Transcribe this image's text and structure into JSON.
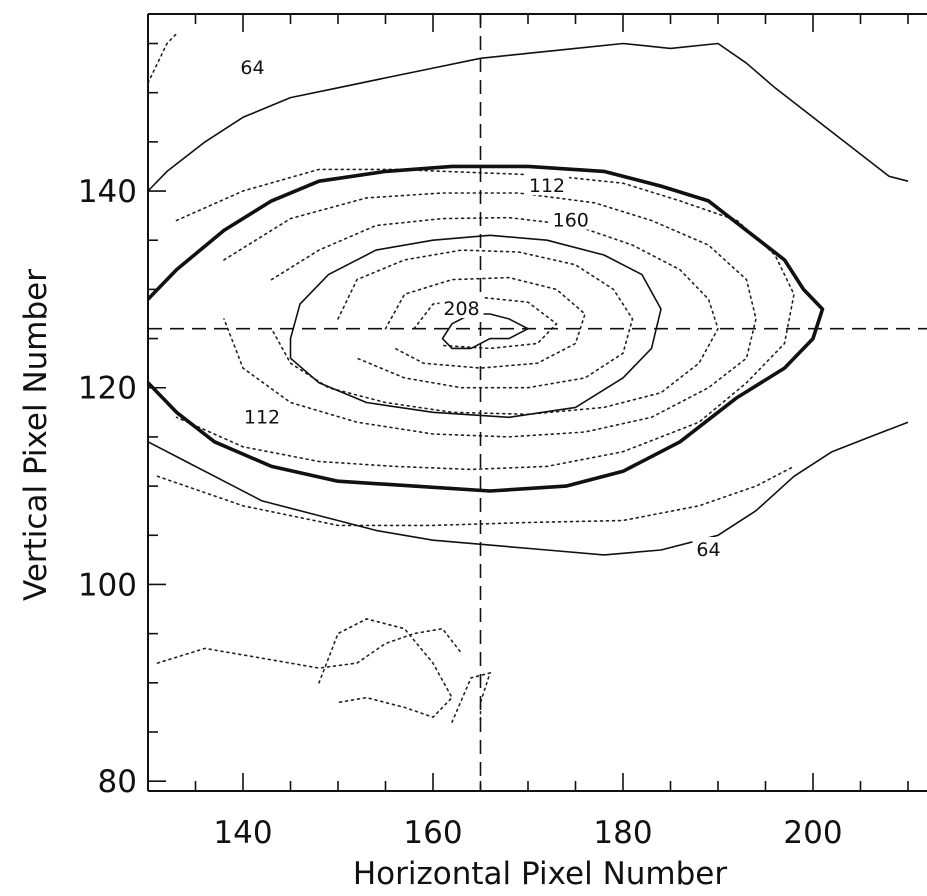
{
  "chart_data": {
    "type": "contour",
    "title": "",
    "xlabel": "Horizontal Pixel Number",
    "ylabel": "Vertical Pixel Number",
    "xlim": [
      130,
      212
    ],
    "ylim": [
      79,
      158
    ],
    "x_ticks": [
      140,
      160,
      180,
      200
    ],
    "x_tick_labels": [
      "140",
      "160",
      "180",
      "200"
    ],
    "y_ticks": [
      80,
      100,
      120,
      140
    ],
    "y_tick_labels": [
      "80",
      "100",
      "120",
      "140"
    ],
    "reference_lines": {
      "vertical_x": 165,
      "horizontal_y": 126
    },
    "peak": {
      "x": 166,
      "y": 126
    },
    "contours": [
      {
        "level": 64,
        "label": "64",
        "style": "solid",
        "points": [
          [
            130,
            140
          ],
          [
            132,
            142
          ],
          [
            136,
            145
          ],
          [
            140,
            147.5
          ],
          [
            145,
            149.5
          ],
          [
            150,
            150.5
          ],
          [
            155,
            151.5
          ],
          [
            160,
            152.5
          ],
          [
            165,
            153.5
          ],
          [
            170,
            154
          ],
          [
            175,
            154.5
          ],
          [
            180,
            155
          ],
          [
            185,
            154.5
          ],
          [
            190,
            155
          ],
          [
            193,
            153
          ],
          [
            196,
            150.5
          ],
          [
            200,
            147.5
          ],
          [
            204,
            144.5
          ],
          [
            208,
            141.5
          ],
          [
            210,
            141
          ]
        ]
      },
      {
        "level": 64,
        "label": "64",
        "style": "solid",
        "points": [
          [
            130,
            114.5
          ],
          [
            134,
            112.5
          ],
          [
            138,
            110.5
          ],
          [
            142,
            108.5
          ],
          [
            148,
            107
          ],
          [
            154,
            105.5
          ],
          [
            160,
            104.5
          ],
          [
            166,
            104
          ],
          [
            172,
            103.5
          ],
          [
            178,
            103
          ],
          [
            184,
            103.5
          ],
          [
            190,
            105
          ],
          [
            194,
            107.5
          ],
          [
            198,
            111
          ],
          [
            202,
            113.5
          ],
          [
            206,
            115
          ],
          [
            210,
            116.5
          ]
        ]
      },
      {
        "level": 112,
        "label": "112",
        "style": "bold",
        "points": [
          [
            130,
            129
          ],
          [
            133,
            132
          ],
          [
            138,
            136
          ],
          [
            143,
            139
          ],
          [
            148,
            141
          ],
          [
            155,
            142
          ],
          [
            162,
            142.5
          ],
          [
            170,
            142.5
          ],
          [
            178,
            142
          ],
          [
            184,
            140.5
          ],
          [
            189,
            139
          ],
          [
            193,
            136
          ],
          [
            197,
            133
          ],
          [
            199,
            130
          ],
          [
            201,
            128
          ],
          [
            200,
            125
          ],
          [
            197,
            122
          ],
          [
            192,
            119
          ],
          [
            186,
            114.5
          ],
          [
            180,
            111.5
          ],
          [
            174,
            110
          ],
          [
            166,
            109.5
          ],
          [
            158,
            110
          ],
          [
            150,
            110.5
          ],
          [
            143,
            112
          ],
          [
            137,
            114.5
          ],
          [
            133,
            117.5
          ],
          [
            130,
            120.5
          ]
        ]
      },
      {
        "level": 160,
        "label": "160",
        "style": "solid",
        "points": [
          [
            145,
            125
          ],
          [
            146,
            128.5
          ],
          [
            149,
            131.5
          ],
          [
            154,
            134
          ],
          [
            160,
            135
          ],
          [
            166,
            135.5
          ],
          [
            172,
            135
          ],
          [
            178,
            133.5
          ],
          [
            182,
            131.5
          ],
          [
            184,
            128
          ],
          [
            183,
            124
          ],
          [
            180,
            121
          ],
          [
            175,
            118
          ],
          [
            168,
            117
          ],
          [
            160,
            117.5
          ],
          [
            153,
            118.5
          ],
          [
            148,
            120.5
          ],
          [
            145,
            123
          ]
        ]
      },
      {
        "level": 208,
        "label": "208",
        "style": "solid",
        "points": [
          [
            161,
            125
          ],
          [
            162,
            126.5
          ],
          [
            164,
            127.5
          ],
          [
            166,
            127.5
          ],
          [
            168,
            127
          ],
          [
            170,
            126
          ],
          [
            168,
            125
          ],
          [
            166,
            125
          ],
          [
            164,
            124
          ],
          [
            162,
            124
          ]
        ]
      }
    ],
    "dotted_contours": [
      [
        [
          133,
          137
        ],
        [
          140,
          140
        ],
        [
          148,
          142.2
        ],
        [
          156,
          142.2
        ],
        [
          164,
          141.9
        ],
        [
          172,
          141.6
        ],
        [
          180,
          140.8
        ],
        [
          186,
          139
        ],
        [
          192,
          137
        ],
        [
          196,
          133.5
        ],
        [
          198,
          129.5
        ],
        [
          197,
          124.5
        ],
        [
          193,
          120.5
        ],
        [
          188,
          116.5
        ],
        [
          180,
          113.5
        ],
        [
          172,
          112
        ],
        [
          164,
          111.7
        ],
        [
          156,
          112
        ],
        [
          148,
          112.5
        ],
        [
          140,
          114
        ],
        [
          133,
          117
        ]
      ],
      [
        [
          138,
          133
        ],
        [
          145,
          137.2
        ],
        [
          153,
          139.3
        ],
        [
          161,
          139.8
        ],
        [
          169,
          139.8
        ],
        [
          177,
          138.8
        ],
        [
          183,
          137
        ],
        [
          189,
          134.5
        ],
        [
          193,
          131
        ],
        [
          194,
          127
        ],
        [
          193,
          123
        ],
        [
          189,
          120
        ],
        [
          183,
          117
        ],
        [
          176,
          115.5
        ],
        [
          168,
          115
        ],
        [
          160,
          115.3
        ],
        [
          152,
          116.5
        ],
        [
          145,
          118.5
        ],
        [
          140,
          122
        ],
        [
          138,
          127
        ]
      ],
      [
        [
          143,
          131
        ],
        [
          148,
          134
        ],
        [
          154,
          136.5
        ],
        [
          161,
          137.2
        ],
        [
          168,
          137.3
        ],
        [
          175,
          136.5
        ],
        [
          181,
          134.5
        ],
        [
          186,
          132
        ],
        [
          189,
          129
        ],
        [
          190,
          126
        ],
        [
          188,
          122.5
        ],
        [
          184,
          119.5
        ],
        [
          178,
          118
        ],
        [
          170,
          117.3
        ],
        [
          162,
          117.5
        ],
        [
          155,
          118.5
        ],
        [
          149,
          120
        ],
        [
          145,
          122.5
        ],
        [
          143,
          126
        ]
      ],
      [
        [
          150,
          127
        ],
        [
          152,
          131
        ],
        [
          157,
          133
        ],
        [
          163,
          134
        ],
        [
          169,
          133.8
        ],
        [
          175,
          132.5
        ],
        [
          179,
          130
        ],
        [
          181,
          127
        ],
        [
          180,
          123.5
        ],
        [
          176,
          121
        ],
        [
          170,
          120
        ],
        [
          163,
          120
        ],
        [
          157,
          121
        ],
        [
          152,
          123
        ]
      ],
      [
        [
          155,
          126
        ],
        [
          157,
          129.5
        ],
        [
          162,
          131
        ],
        [
          168,
          131.2
        ],
        [
          173,
          130
        ],
        [
          176,
          127.5
        ],
        [
          175,
          124.5
        ],
        [
          171,
          122.5
        ],
        [
          165,
          122
        ],
        [
          159,
          122.5
        ],
        [
          156,
          124
        ]
      ],
      [
        [
          158,
          126
        ],
        [
          160,
          128.5
        ],
        [
          165,
          129.2
        ],
        [
          170,
          128.7
        ],
        [
          173,
          126.5
        ],
        [
          171,
          124.5
        ],
        [
          166,
          124
        ],
        [
          161,
          124.3
        ]
      ],
      [
        [
          131,
          111
        ],
        [
          140,
          108
        ],
        [
          150,
          106
        ],
        [
          160,
          106
        ],
        [
          170,
          106.3
        ],
        [
          180,
          106.5
        ],
        [
          188,
          108
        ],
        [
          194,
          110
        ],
        [
          198,
          112
        ]
      ],
      [
        [
          131,
          92
        ],
        [
          136,
          93.5
        ],
        [
          142,
          92.5
        ],
        [
          148,
          91.5
        ],
        [
          152,
          92
        ],
        [
          155,
          94
        ],
        [
          158,
          95
        ],
        [
          161,
          95.5
        ],
        [
          163,
          93
        ]
      ],
      [
        [
          148,
          90
        ],
        [
          150,
          95
        ],
        [
          153,
          96.5
        ],
        [
          157,
          95.5
        ],
        [
          160,
          92
        ],
        [
          162,
          88.5
        ],
        [
          160,
          86.5
        ],
        [
          157,
          87.5
        ],
        [
          153,
          88.5
        ],
        [
          150,
          88
        ]
      ],
      [
        [
          162,
          86
        ],
        [
          164,
          90.5
        ],
        [
          166,
          91
        ],
        [
          165,
          88
        ],
        [
          165,
          86
        ]
      ],
      [
        [
          130,
          151
        ],
        [
          131,
          153
        ],
        [
          132,
          155
        ],
        [
          133,
          156
        ]
      ]
    ],
    "contour_labels": [
      {
        "text": "64",
        "x": 141,
        "y": 152.5
      },
      {
        "text": "112",
        "x": 172,
        "y": 140.5
      },
      {
        "text": "160",
        "x": 174.5,
        "y": 137
      },
      {
        "text": "208",
        "x": 163,
        "y": 128
      },
      {
        "text": "112",
        "x": 142,
        "y": 117
      },
      {
        "text": "64",
        "x": 189,
        "y": 103.5
      }
    ]
  }
}
